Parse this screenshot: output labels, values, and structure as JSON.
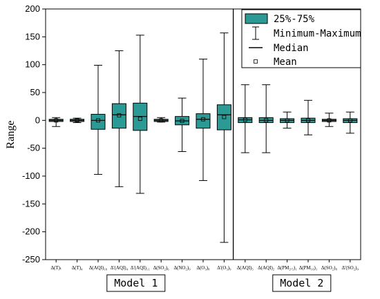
{
  "chart_data": {
    "type": "box",
    "ylabel": "Range",
    "ylim": [
      -250,
      200
    ],
    "yticks": [
      -250,
      -200,
      -150,
      -100,
      -50,
      0,
      50,
      100,
      150,
      200
    ],
    "colors": {
      "box_fill": "#2b9a95",
      "box_edge": "#000000",
      "axis": "#000000"
    },
    "legend": {
      "placement": "top-right",
      "items": [
        {
          "icon": "box-swatch",
          "label": "25%-75%"
        },
        {
          "icon": "whisker-icon",
          "label": "Minimum-Maximum"
        },
        {
          "icon": "median-line-icon",
          "label": "Median"
        },
        {
          "icon": "mean-marker-icon",
          "label": "Mean"
        }
      ]
    },
    "groups": [
      {
        "label": "Model 1",
        "category_count": 9
      },
      {
        "label": "Model 2",
        "category_count": 6
      }
    ],
    "categories": [
      "Δ(T)ₜ",
      "Δ(T)₄",
      "Δ(AQI)₁₀",
      "Δ'(AQI)₄",
      "Δ'(AQI)₁₁",
      "Δ(SO₂)₆",
      "Δ(NO₂)₉",
      "Δ(O₃)₈",
      "Δ'(O₃)₉",
      "Δ(AQI)₅",
      "Δ(AQI)₂",
      "Δ(PM₂.₅)₁",
      "Δ(PM₁₀)₁",
      "Δ(SO₂)₈",
      "Δ'(SO₂)₉"
    ],
    "series": [
      {
        "min": -11,
        "q1": -2,
        "median": 0,
        "q3": 2,
        "max": 5,
        "mean": 0
      },
      {
        "min": -4,
        "q1": -2,
        "median": 0,
        "q3": 2,
        "max": 4,
        "mean": 0
      },
      {
        "min": -97,
        "q1": -16,
        "median": 0,
        "q3": 11,
        "max": 99,
        "mean": 0
      },
      {
        "min": -119,
        "q1": -14,
        "median": 10,
        "q3": 30,
        "max": 125,
        "mean": 9
      },
      {
        "min": -131,
        "q1": -18,
        "median": 7,
        "q3": 31,
        "max": 153,
        "mean": 3
      },
      {
        "min": -3,
        "q1": -2,
        "median": 0,
        "q3": 2,
        "max": 5,
        "mean": 0
      },
      {
        "min": -56,
        "q1": -8,
        "median": -1,
        "q3": 7,
        "max": 40,
        "mean": -1
      },
      {
        "min": -108,
        "q1": -14,
        "median": 2,
        "q3": 12,
        "max": 110,
        "mean": 2
      },
      {
        "min": -219,
        "q1": -17,
        "median": 10,
        "q3": 28,
        "max": 157,
        "mean": 6
      },
      {
        "min": -58,
        "q1": -4,
        "median": 1,
        "q3": 5,
        "max": 64,
        "mean": 1
      },
      {
        "min": -58,
        "q1": -4,
        "median": 0,
        "q3": 5,
        "max": 64,
        "mean": 0
      },
      {
        "min": -14,
        "q1": -4,
        "median": 0,
        "q3": 3,
        "max": 15,
        "mean": 0
      },
      {
        "min": -26,
        "q1": -4,
        "median": 0,
        "q3": 4,
        "max": 36,
        "mean": 0
      },
      {
        "min": -11,
        "q1": -2,
        "median": 0,
        "q3": 2,
        "max": 13,
        "mean": 0
      },
      {
        "min": -23,
        "q1": -4,
        "median": 0,
        "q3": 3,
        "max": 15,
        "mean": 0
      }
    ]
  }
}
